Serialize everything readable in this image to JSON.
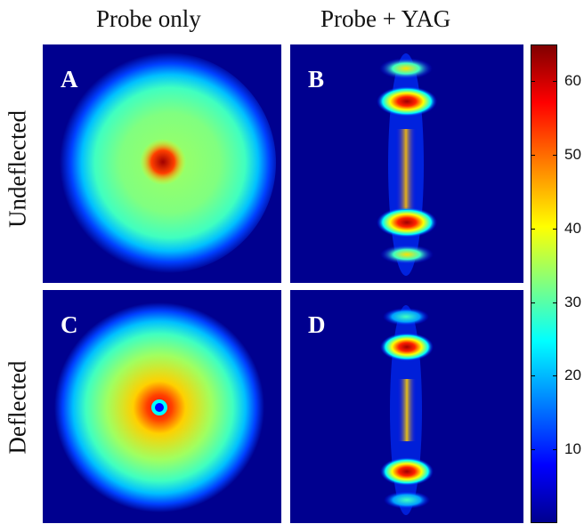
{
  "columns": [
    "Probe only",
    "Probe + YAG"
  ],
  "rows": [
    "Undeflected",
    "Deflected"
  ],
  "panels": [
    {
      "label": "A"
    },
    {
      "label": "B"
    },
    {
      "label": "C"
    },
    {
      "label": "D"
    }
  ],
  "colorbar": {
    "ticks": [
      "60",
      "50",
      "40",
      "30",
      "20",
      "10"
    ],
    "tick_values": [
      60,
      50,
      40,
      30,
      20,
      10
    ],
    "range": [
      0,
      65
    ],
    "colormap": "jet"
  },
  "colors": {
    "background_deep_blue": "#00008f",
    "label_text": "#ffffff"
  }
}
